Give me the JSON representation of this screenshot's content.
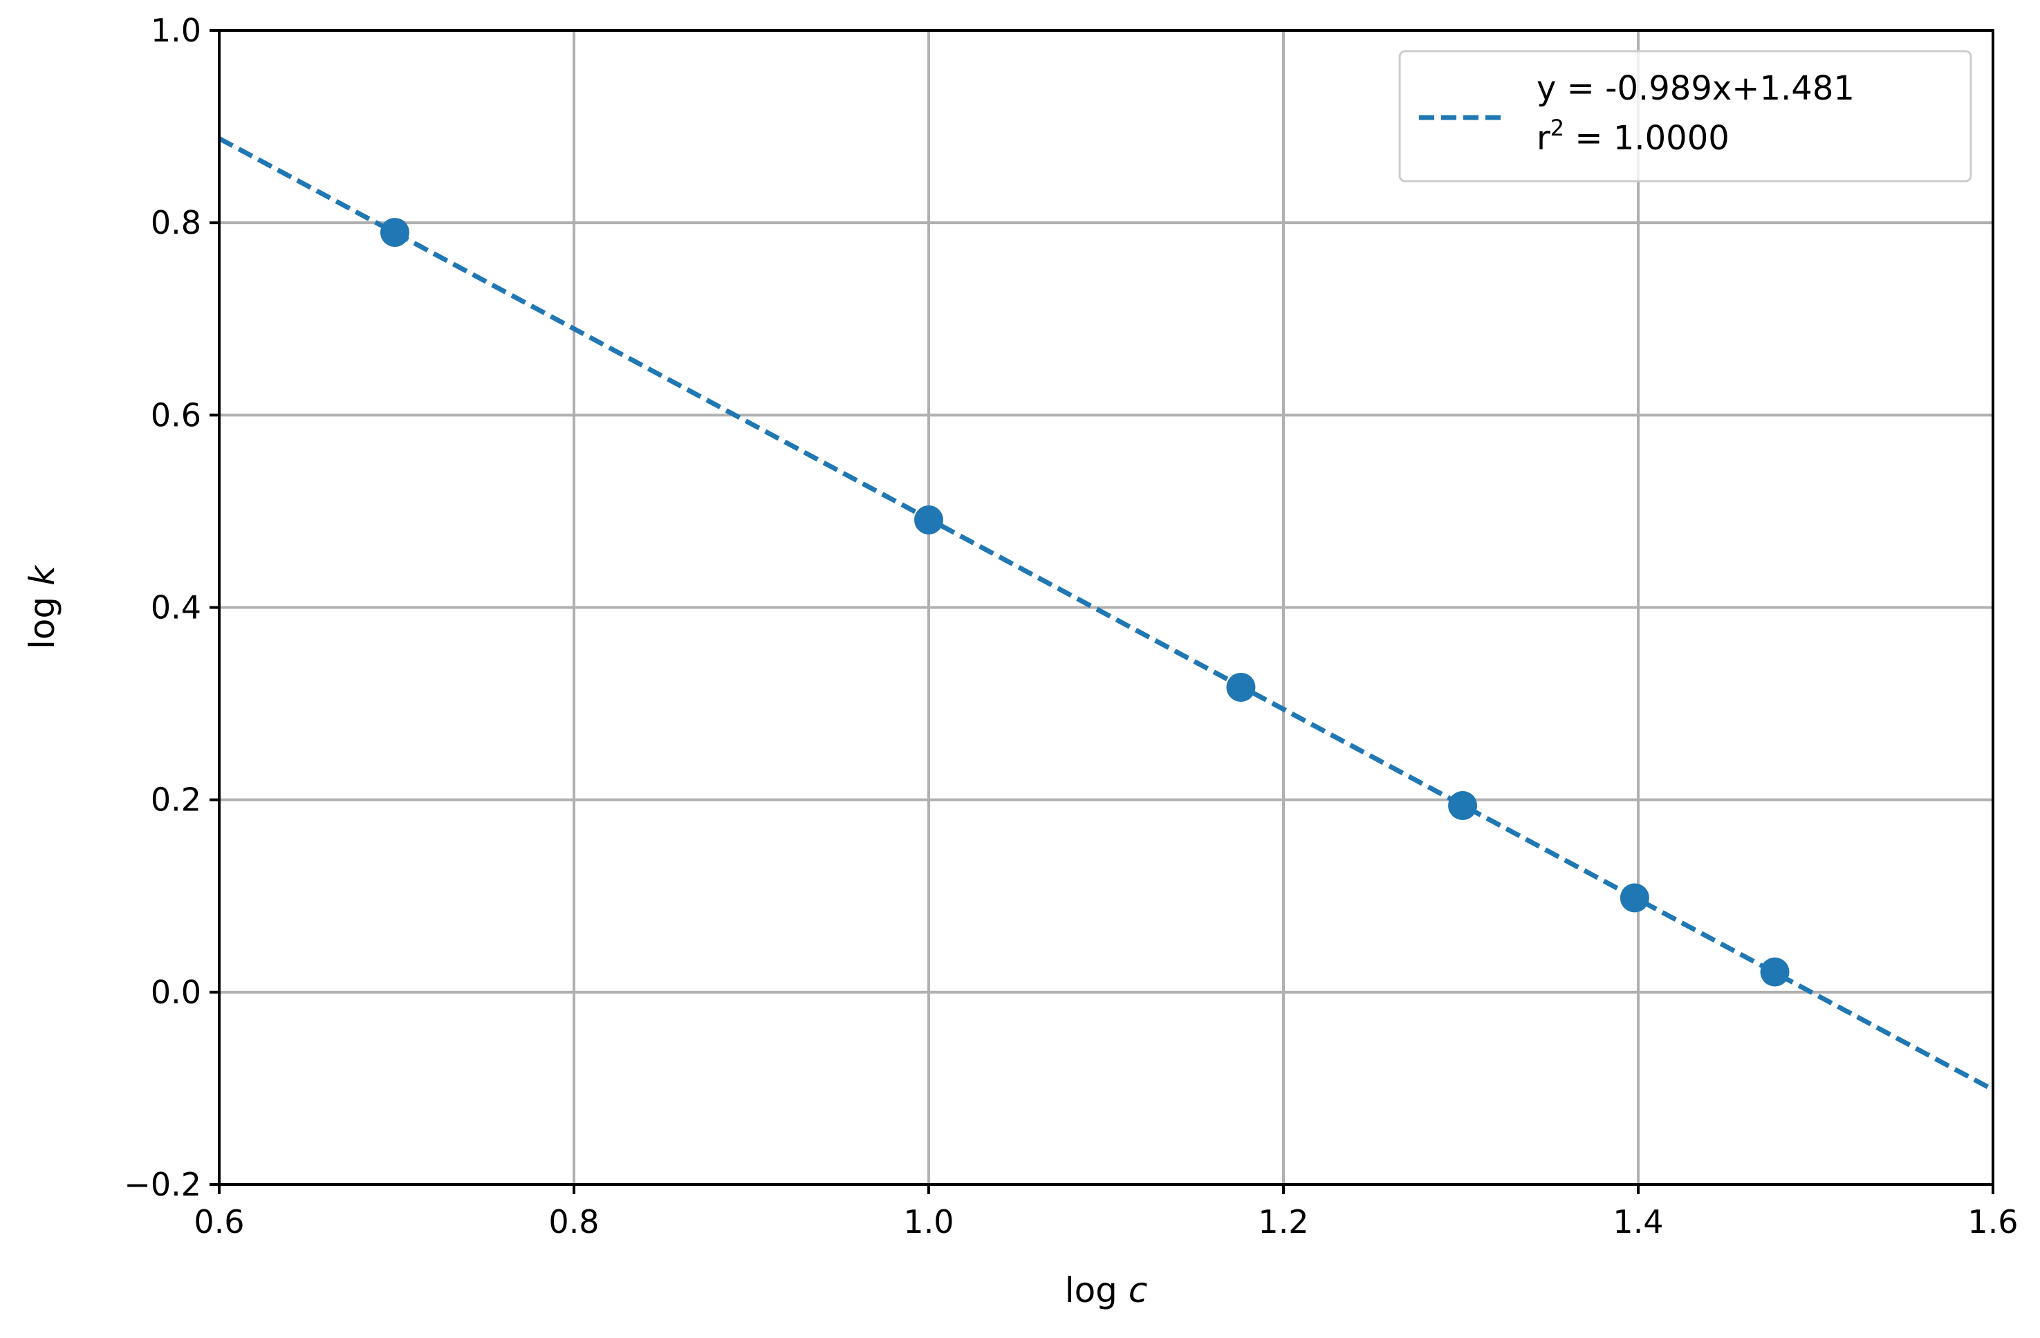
{
  "chart_data": {
    "type": "scatter",
    "title": "",
    "xlabel": "log c",
    "ylabel": "log k",
    "xlim": [
      0.6,
      1.6
    ],
    "ylim": [
      -0.2,
      1.0
    ],
    "x_ticks": [
      "0.6",
      "0.8",
      "1.0",
      "1.2",
      "1.4",
      "1.6"
    ],
    "y_ticks": [
      "−0.2",
      "0.0",
      "0.2",
      "0.4",
      "0.6",
      "0.8",
      "1.0"
    ],
    "grid": true,
    "legend_position": "top-right",
    "points": [
      {
        "x": 0.699,
        "y": 0.79
      },
      {
        "x": 1.0,
        "y": 0.491
      },
      {
        "x": 1.176,
        "y": 0.317
      },
      {
        "x": 1.301,
        "y": 0.194
      },
      {
        "x": 1.398,
        "y": 0.098
      },
      {
        "x": 1.477,
        "y": 0.021
      }
    ],
    "fit": {
      "slope": -0.989,
      "intercept": 1.481,
      "style": "dashed",
      "legend_line1": "y = -0.989x+1.481",
      "legend_line2_prefix": "r",
      "legend_line2_sup": "2",
      "legend_line2_suffix": " = 1.0000"
    },
    "colors": {
      "series": "#1f77b4",
      "grid": "#b0b0b0",
      "axis": "#000000"
    }
  }
}
